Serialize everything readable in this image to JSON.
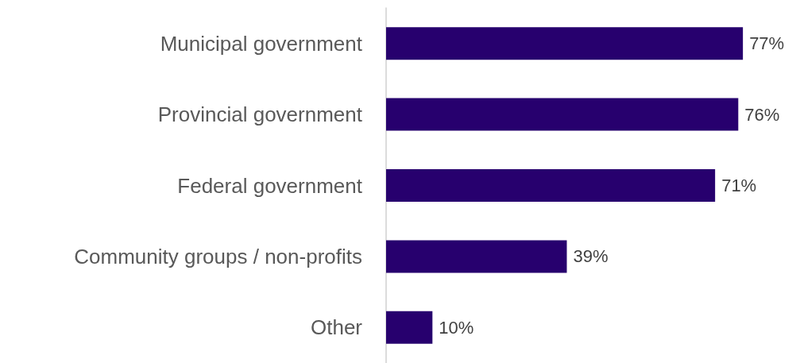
{
  "chart_data": {
    "type": "bar",
    "orientation": "horizontal",
    "categories": [
      "Municipal government",
      "Provincial government",
      "Federal government",
      "Community groups / non-profits",
      "Other"
    ],
    "values": [
      77,
      76,
      71,
      39,
      10
    ],
    "value_labels": [
      "77%",
      "76%",
      "71%",
      "39%",
      "10%"
    ],
    "color": "#27006e"
  }
}
